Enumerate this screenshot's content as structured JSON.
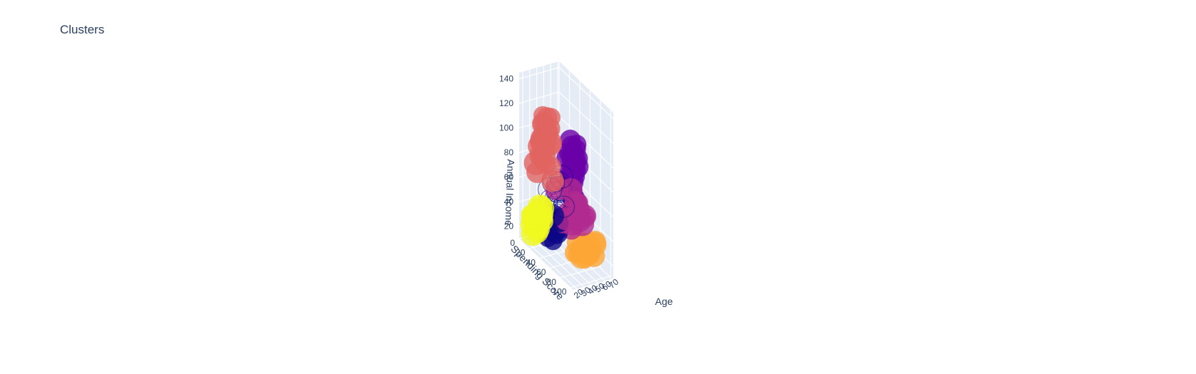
{
  "chart_data": {
    "type": "scatter3d",
    "title": "Clusters",
    "axes": {
      "x": {
        "label": "Age",
        "range": [
          15,
          72
        ],
        "ticks": [
          "20",
          "30",
          "40",
          "50",
          "60",
          "70"
        ]
      },
      "y": {
        "label": "Spending Score",
        "range": [
          0,
          105
        ],
        "ticks": [
          "0",
          "20",
          "40",
          "60",
          "80",
          "100"
        ]
      },
      "z": {
        "label": "Annual Income",
        "range": [
          10,
          145
        ],
        "ticks": [
          "20",
          "40",
          "60",
          "80",
          "100",
          "120",
          "140"
        ]
      }
    },
    "grid": true,
    "legend": "none",
    "clusters": [
      {
        "color": "#0d0887",
        "style": "outline",
        "center": {
          "age": 33,
          "score": 50,
          "income": 60
        },
        "spread": {
          "age": 8,
          "score": 10,
          "income": 10
        },
        "count": 30
      },
      {
        "color": "#0d0887",
        "style": "filled",
        "center": {
          "age": 28,
          "score": 50,
          "income": 35
        },
        "spread": {
          "age": 5,
          "score": 6,
          "income": 6
        },
        "count": 12
      },
      {
        "color": "#6a00a8",
        "style": "filled",
        "center": {
          "age": 32,
          "score": 82,
          "income": 95
        },
        "spread": {
          "age": 3,
          "score": 8,
          "income": 20
        },
        "count": 28
      },
      {
        "color": "#b12a90",
        "style": "filled",
        "center": {
          "age": 48,
          "score": 60,
          "income": 52
        },
        "spread": {
          "age": 8,
          "score": 12,
          "income": 8
        },
        "count": 24
      },
      {
        "color": "#e16462",
        "style": "filled",
        "center": {
          "age": 40,
          "score": 15,
          "income": 90
        },
        "spread": {
          "age": 8,
          "score": 6,
          "income": 22
        },
        "count": 26
      },
      {
        "color": "#fca636",
        "style": "filled",
        "center": {
          "age": 50,
          "score": 80,
          "income": 25
        },
        "spread": {
          "age": 10,
          "score": 10,
          "income": 5
        },
        "count": 22
      },
      {
        "color": "#f0f921",
        "style": "filled",
        "center": {
          "age": 30,
          "score": 12,
          "income": 28
        },
        "spread": {
          "age": 10,
          "score": 6,
          "income": 6
        },
        "count": 22
      }
    ]
  }
}
